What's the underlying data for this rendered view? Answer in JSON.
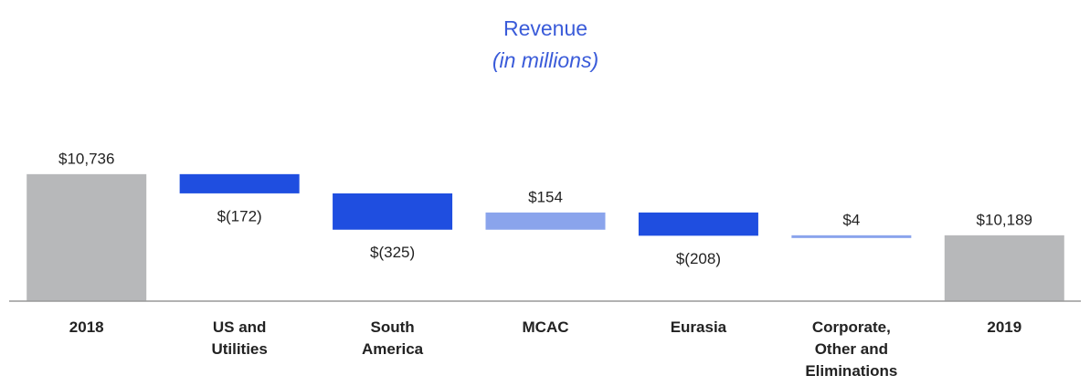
{
  "chart_data": {
    "type": "waterfall",
    "title": "Revenue",
    "subtitle": "(in millions)",
    "categories": [
      "2018",
      "US and\nUtilities",
      "South\nAmerica",
      "MCAC",
      "Eurasia",
      "Corporate,\nOther and\nEliminations",
      "2019"
    ],
    "measures": [
      "total",
      "relative",
      "relative",
      "relative",
      "relative",
      "relative",
      "total"
    ],
    "values": [
      10736,
      -172,
      -325,
      154,
      -208,
      4,
      10189
    ],
    "value_labels": [
      "$10,736",
      "$(172)",
      "$(325)",
      "$154",
      "$(208)",
      "$4",
      "$10,189"
    ],
    "color_total": "#b7b8ba",
    "color_decrease": "#1f4ee0",
    "color_increase": "#8aa4ec",
    "ylim": [
      9600,
      11000
    ]
  }
}
